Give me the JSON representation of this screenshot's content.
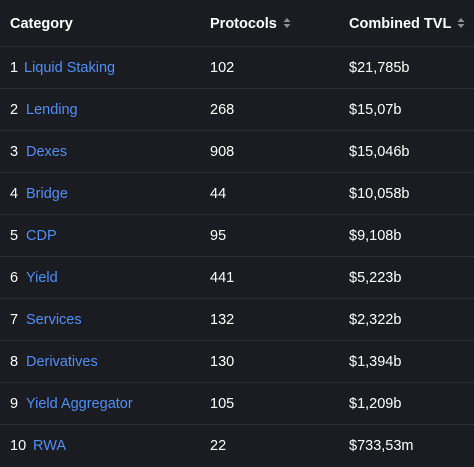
{
  "header": {
    "category": "Category",
    "protocols": "Protocols",
    "combined_tvl": "Combined TVL",
    "sort_icon": "sort-updown-icon"
  },
  "rows": [
    {
      "rank": "1",
      "category": "Liquid Staking",
      "protocols": "102",
      "tvl": "$21,785b"
    },
    {
      "rank": "2",
      "category": "Lending",
      "protocols": "268",
      "tvl": "$15,07b"
    },
    {
      "rank": "3",
      "category": "Dexes",
      "protocols": "908",
      "tvl": "$15,046b"
    },
    {
      "rank": "4",
      "category": "Bridge",
      "protocols": "44",
      "tvl": "$10,058b"
    },
    {
      "rank": "5",
      "category": "CDP",
      "protocols": "95",
      "tvl": "$9,108b"
    },
    {
      "rank": "6",
      "category": "Yield",
      "protocols": "441",
      "tvl": "$5,223b"
    },
    {
      "rank": "7",
      "category": "Services",
      "protocols": "132",
      "tvl": "$2,322b"
    },
    {
      "rank": "8",
      "category": "Derivatives",
      "protocols": "130",
      "tvl": "$1,394b"
    },
    {
      "rank": "9",
      "category": "Yield Aggregator",
      "protocols": "105",
      "tvl": "$1,209b"
    },
    {
      "rank": "10",
      "category": "RWA",
      "protocols": "22",
      "tvl": "$733,53m"
    }
  ],
  "colors": {
    "background": "#1b1c21",
    "link": "#4f8ff6",
    "text": "#ffffff",
    "divider": "#2a2c31"
  }
}
